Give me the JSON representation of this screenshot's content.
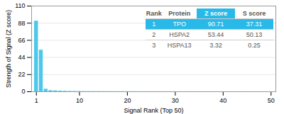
{
  "chart_data": {
    "type": "bar",
    "xlabel": "Signal Rank (Top 50)",
    "ylabel": "Strength of Signal (Z score)",
    "x": [
      1,
      2,
      3,
      4,
      5,
      6,
      7,
      8,
      9,
      10,
      11,
      12,
      13,
      14,
      15,
      16,
      17,
      18,
      19,
      20,
      21,
      22,
      23,
      24,
      25,
      26,
      27,
      28,
      29,
      30,
      31,
      32,
      33,
      34,
      35,
      36,
      37,
      38,
      39,
      40,
      41,
      42,
      43,
      44,
      45,
      46,
      47,
      48,
      49,
      50
    ],
    "values": [
      90.71,
      53.44,
      3.32,
      1.5,
      1.2,
      0.9,
      0.7,
      0.5,
      0.4,
      0.35,
      0.3,
      0.28,
      0.25,
      0.22,
      0.2,
      0.18,
      0.16,
      0.15,
      0.14,
      0.13,
      0.12,
      0.11,
      0.1,
      0.09,
      0.09,
      0.08,
      0.08,
      0.07,
      0.07,
      0.07,
      0.06,
      0.06,
      0.06,
      0.05,
      0.05,
      0.05,
      0.05,
      0.04,
      0.04,
      0.04,
      0.04,
      0.03,
      0.03,
      0.03,
      0.03,
      0.03,
      0.02,
      0.02,
      0.02,
      0.02
    ],
    "color": "#4dc8e8",
    "xlim": [
      0,
      51
    ],
    "xticks": [
      1,
      10,
      20,
      30,
      40,
      50
    ],
    "ylim": [
      0,
      110
    ],
    "yticks": [
      0,
      22,
      44,
      66,
      88,
      110
    ],
    "grid": true,
    "table": {
      "header": [
        "Rank",
        "Protein",
        "Z score",
        "S score"
      ],
      "rows": [
        [
          "1",
          "TPO",
          "90.71",
          "37.31"
        ],
        [
          "2",
          "HSPA2",
          "53.44",
          "50.13"
        ],
        [
          "3",
          "HSPA13",
          "3.32",
          "0.25"
        ]
      ],
      "color": "#29b9e8"
    }
  }
}
